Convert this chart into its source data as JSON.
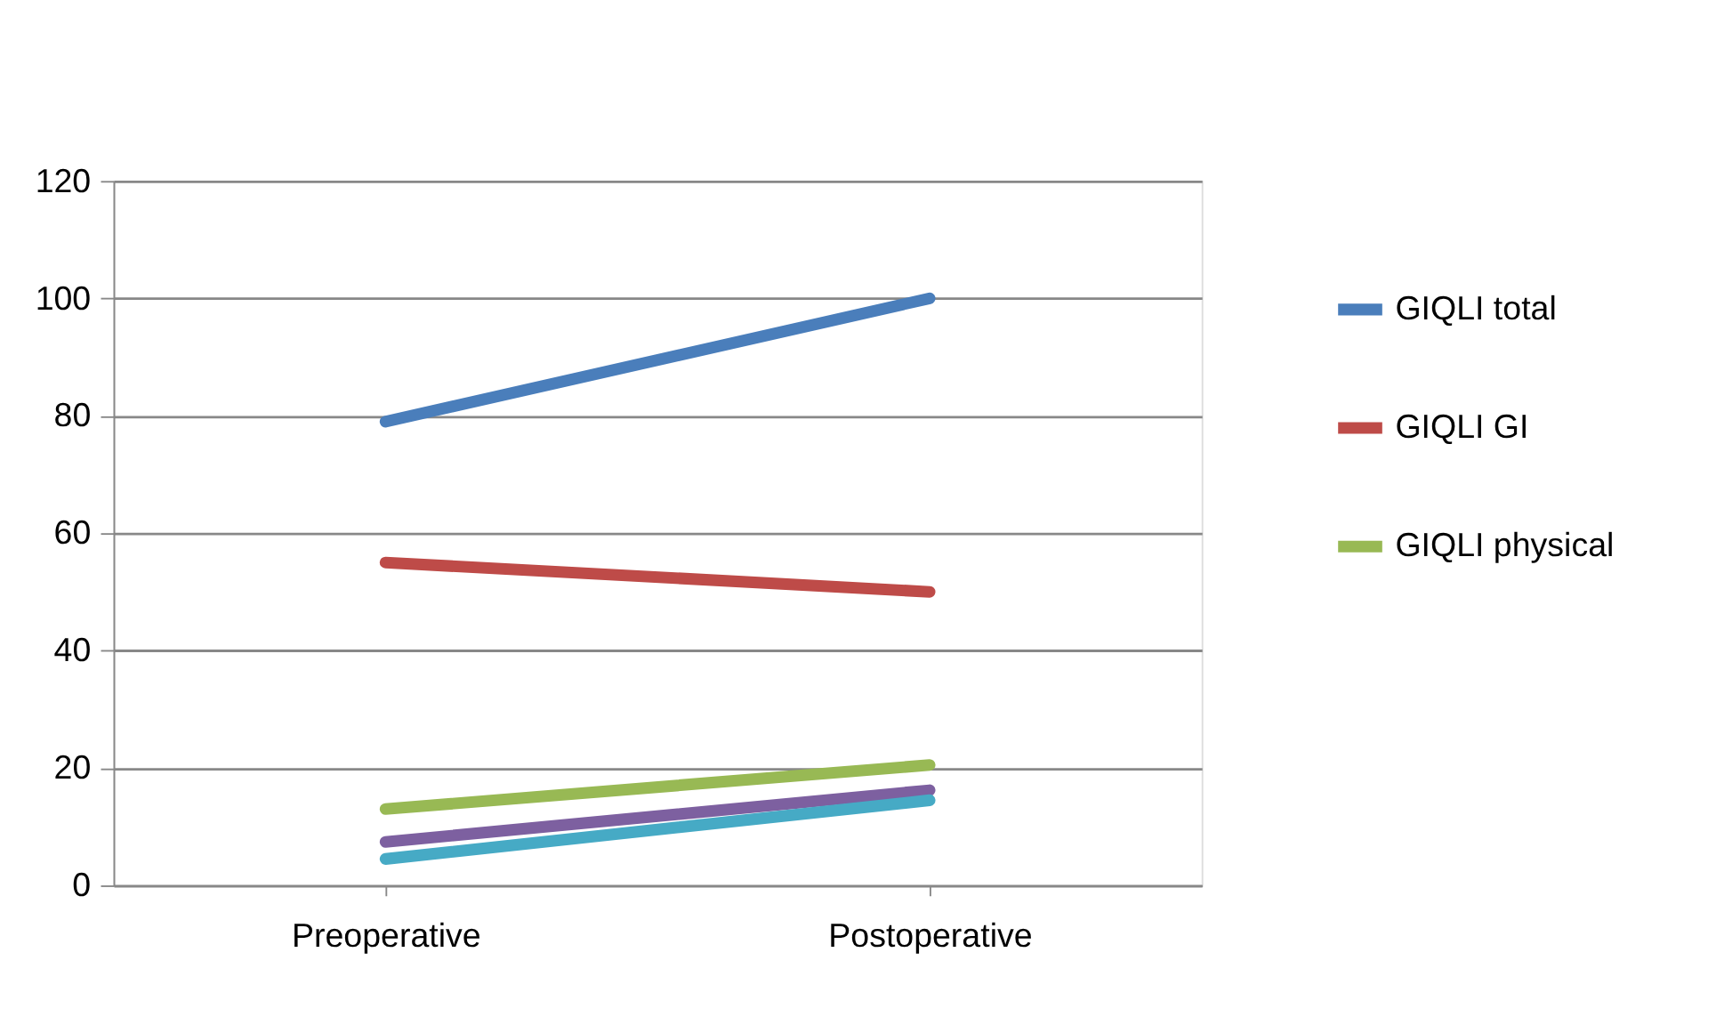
{
  "chart_data": {
    "type": "line",
    "categories": [
      "Preoperative",
      "Postoperative"
    ],
    "series": [
      {
        "name": "GIQLI total",
        "color": "#4a7ebb",
        "values": [
          79,
          100
        ]
      },
      {
        "name": "GIQLI GI",
        "color": "#be4b48",
        "values": [
          55,
          50
        ]
      },
      {
        "name": "GIQLI physical",
        "color": "#98b954",
        "values": [
          13,
          20.5
        ]
      },
      {
        "color": "#7d60a0",
        "values": [
          7.4,
          16.2
        ]
      },
      {
        "color": "#46aac5",
        "values": [
          4.5,
          14.5
        ]
      }
    ],
    "ylim": [
      0,
      120
    ],
    "yticks": [
      0,
      20,
      40,
      60,
      80,
      100,
      120
    ],
    "grid": "y",
    "legend": "right",
    "marker": "none",
    "line_style": "solid"
  }
}
